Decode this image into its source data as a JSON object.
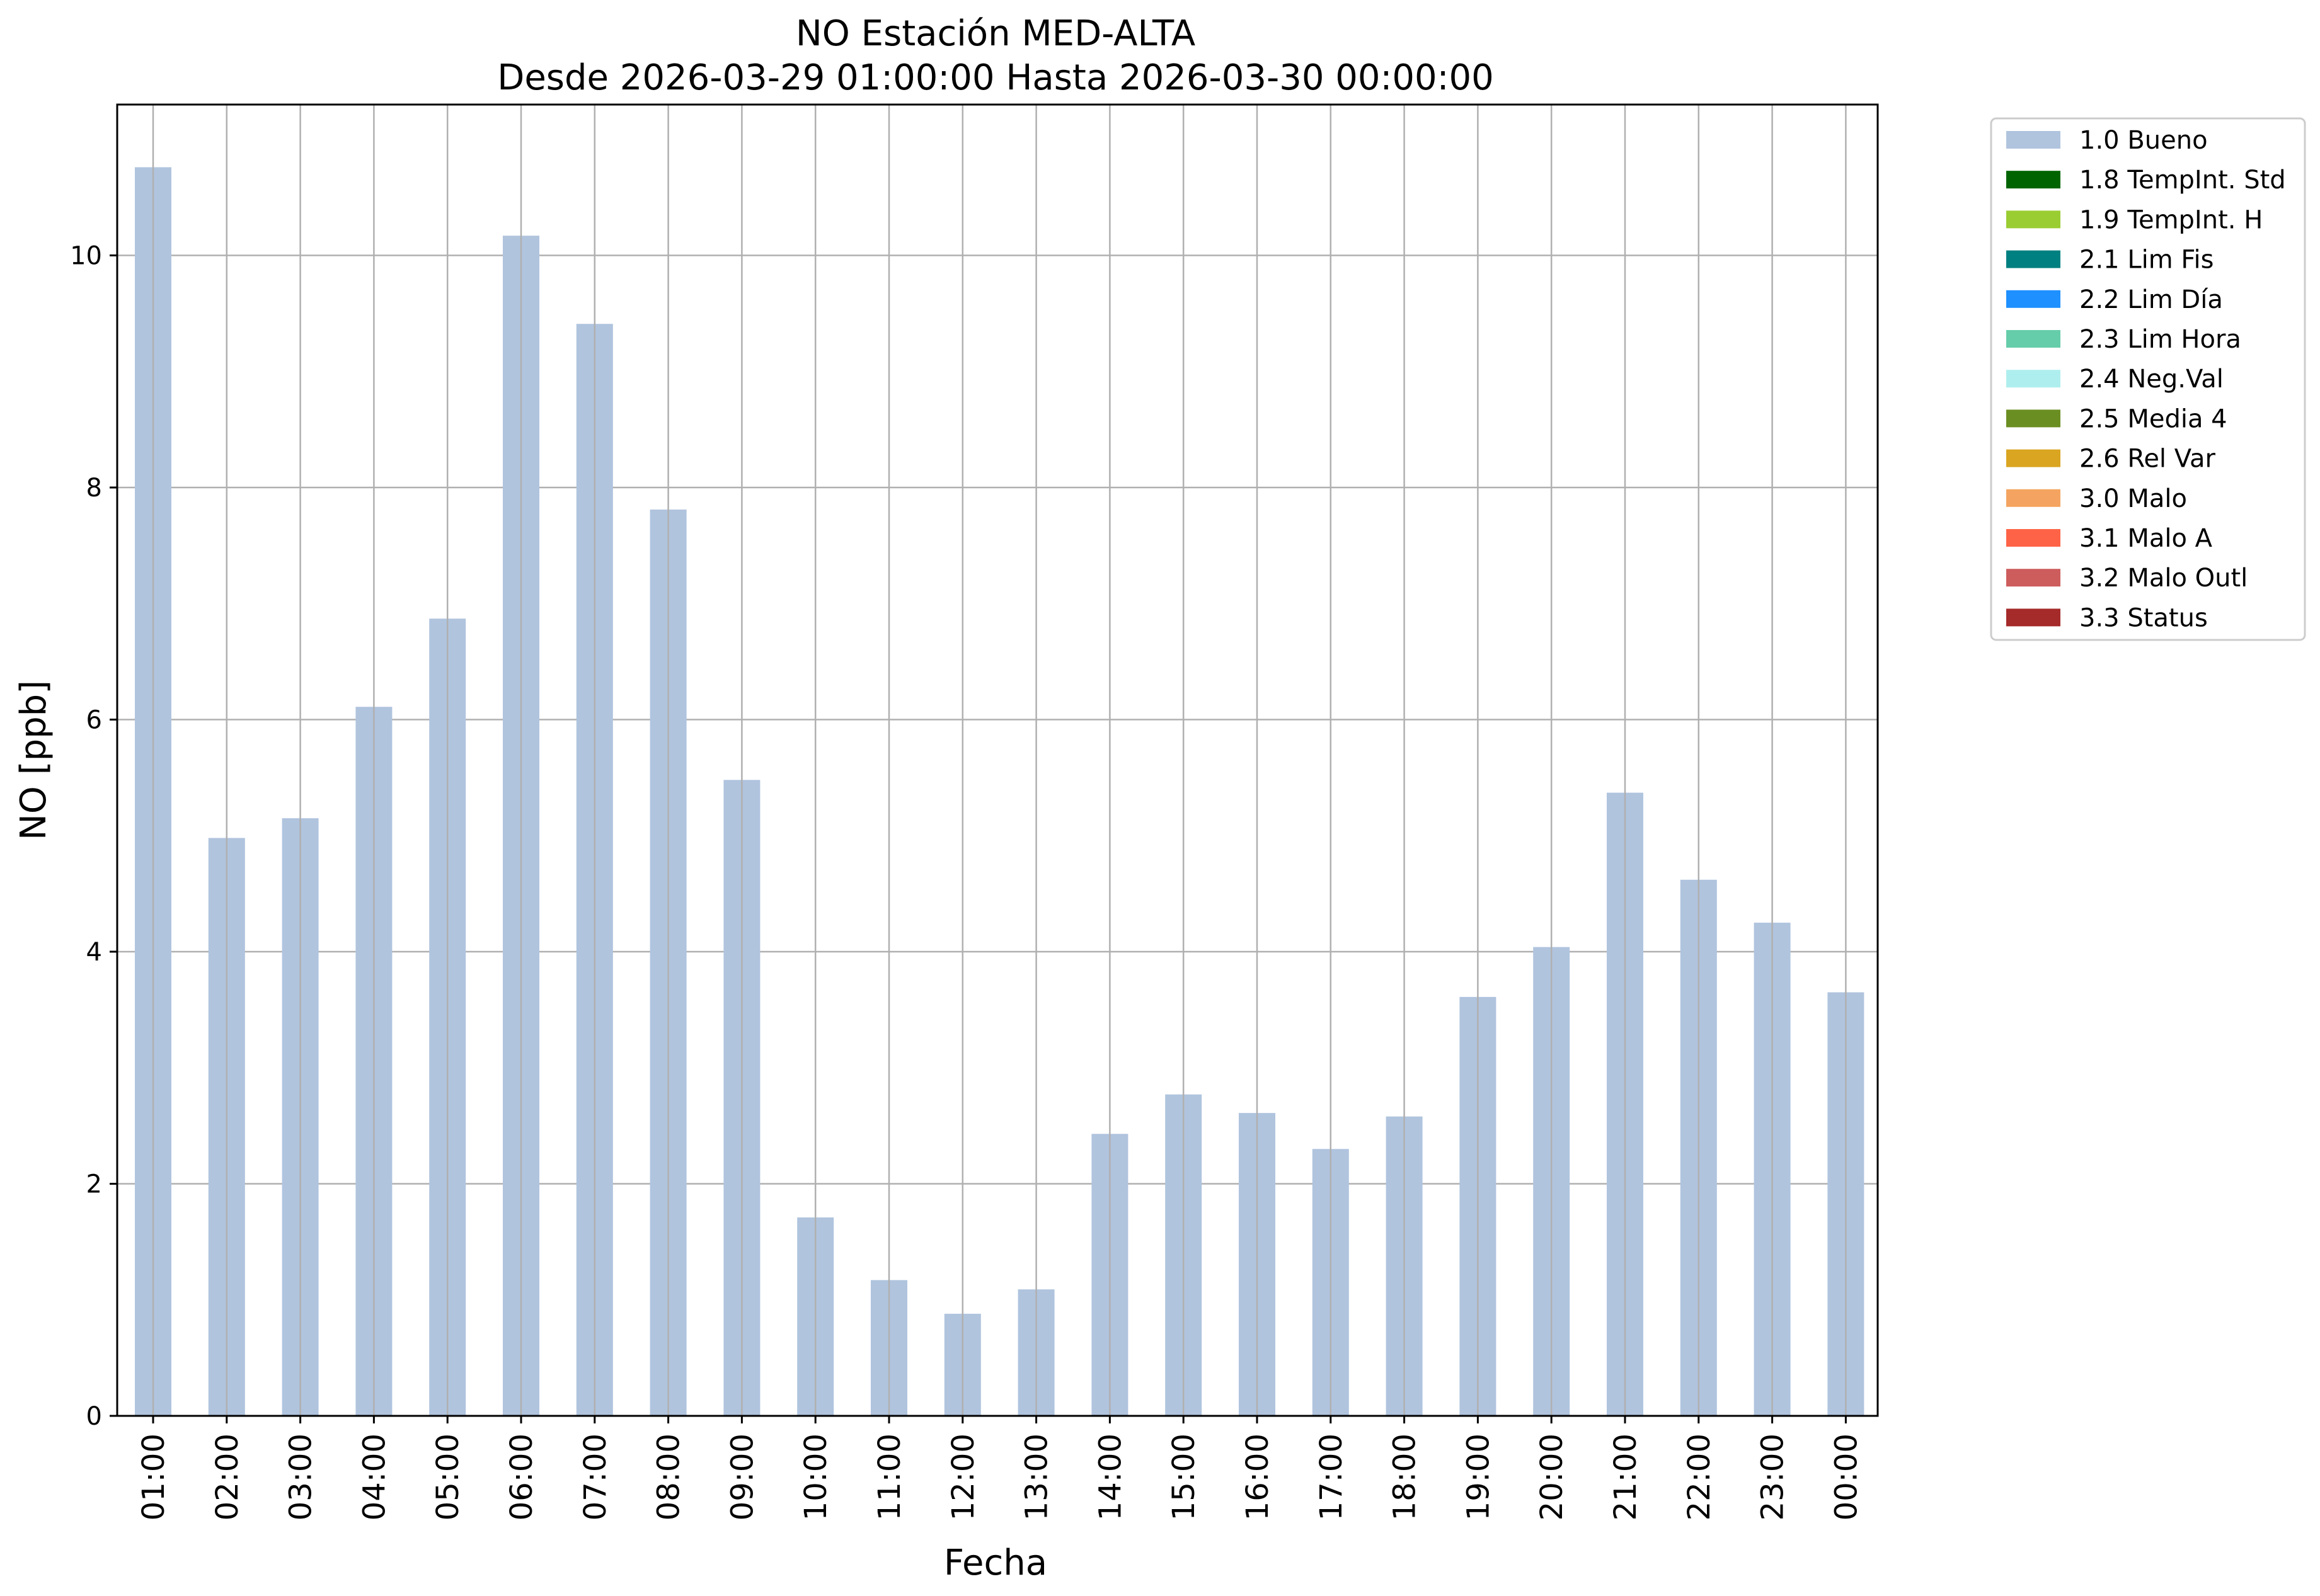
{
  "chart_data": {
    "type": "bar",
    "title": "NO Estación MED-ALTA",
    "subtitle": "Desde 2026-03-29 01:00:00 Hasta 2026-03-30 00:00:00",
    "xlabel": "Fecha",
    "ylabel": "NO [ppb]",
    "ylim": [
      0,
      11.3
    ],
    "yticks": [
      0,
      2,
      4,
      6,
      8,
      10
    ],
    "grid": true,
    "legend_position": "outside-top-right",
    "categories": [
      "01:00",
      "02:00",
      "03:00",
      "04:00",
      "05:00",
      "06:00",
      "07:00",
      "08:00",
      "09:00",
      "10:00",
      "11:00",
      "12:00",
      "13:00",
      "14:00",
      "15:00",
      "16:00",
      "17:00",
      "18:00",
      "19:00",
      "20:00",
      "21:00",
      "22:00",
      "23:00",
      "00:00"
    ],
    "series": [
      {
        "name": "1.0 Bueno",
        "color": "#b0c4de",
        "values": [
          10.76,
          4.98,
          5.15,
          6.11,
          6.87,
          10.17,
          9.41,
          7.81,
          5.48,
          1.71,
          1.17,
          0.88,
          1.09,
          2.43,
          2.77,
          2.61,
          2.3,
          2.58,
          3.61,
          4.04,
          5.37,
          4.62,
          4.25,
          3.65
        ]
      }
    ],
    "legend": [
      {
        "label": "1.0 Bueno",
        "color": "#b0c4de"
      },
      {
        "label": "1.8 TempInt. Std",
        "color": "#006400"
      },
      {
        "label": "1.9 TempInt. H",
        "color": "#9acd32"
      },
      {
        "label": "2.1 Lim Fis",
        "color": "#008080"
      },
      {
        "label": "2.2 Lim Día",
        "color": "#1e90ff"
      },
      {
        "label": "2.3 Lim Hora",
        "color": "#66cdaa"
      },
      {
        "label": "2.4 Neg.Val",
        "color": "#afeeee"
      },
      {
        "label": "2.5 Media 4",
        "color": "#6b8e23"
      },
      {
        "label": "2.6 Rel Var",
        "color": "#daa520"
      },
      {
        "label": "3.0 Malo",
        "color": "#f4a460"
      },
      {
        "label": "3.1 Malo A",
        "color": "#ff6347"
      },
      {
        "label": "3.2 Malo Outl",
        "color": "#cd5c5c"
      },
      {
        "label": "3.3 Status",
        "color": "#a52a2a"
      }
    ]
  }
}
